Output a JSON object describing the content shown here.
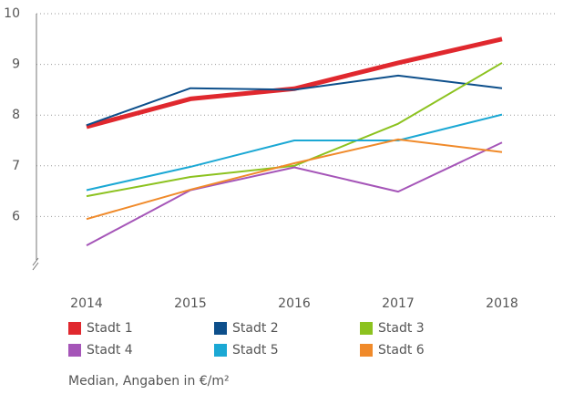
{
  "chart_data": {
    "type": "line",
    "categories": [
      "2014",
      "2015",
      "2016",
      "2017",
      "2018"
    ],
    "series": [
      {
        "name": "Stadt 1",
        "color": "#e0282e",
        "values": [
          7.77,
          8.32,
          8.52,
          9.03,
          9.5
        ]
      },
      {
        "name": "Stadt 2",
        "color": "#0d4f8b",
        "values": [
          7.8,
          8.53,
          8.5,
          8.78,
          8.53
        ]
      },
      {
        "name": "Stadt 3",
        "color": "#8cc21f",
        "values": [
          6.4,
          6.78,
          7.0,
          7.83,
          9.03
        ]
      },
      {
        "name": "Stadt 4",
        "color": "#a555b8",
        "values": [
          5.43,
          6.52,
          6.97,
          6.49,
          7.46
        ]
      },
      {
        "name": "Stadt 5",
        "color": "#1ba8d4",
        "values": [
          6.52,
          6.98,
          7.5,
          7.5,
          8.01
        ]
      },
      {
        "name": "Stadt 6",
        "color": "#f08a2a",
        "values": [
          5.95,
          6.53,
          7.05,
          7.52,
          7.27
        ]
      }
    ],
    "ylim": [
      5,
      10
    ],
    "yticks": [
      6,
      7,
      8,
      9,
      10
    ],
    "grid": true,
    "note": "Median, Angaben in €/m²"
  }
}
